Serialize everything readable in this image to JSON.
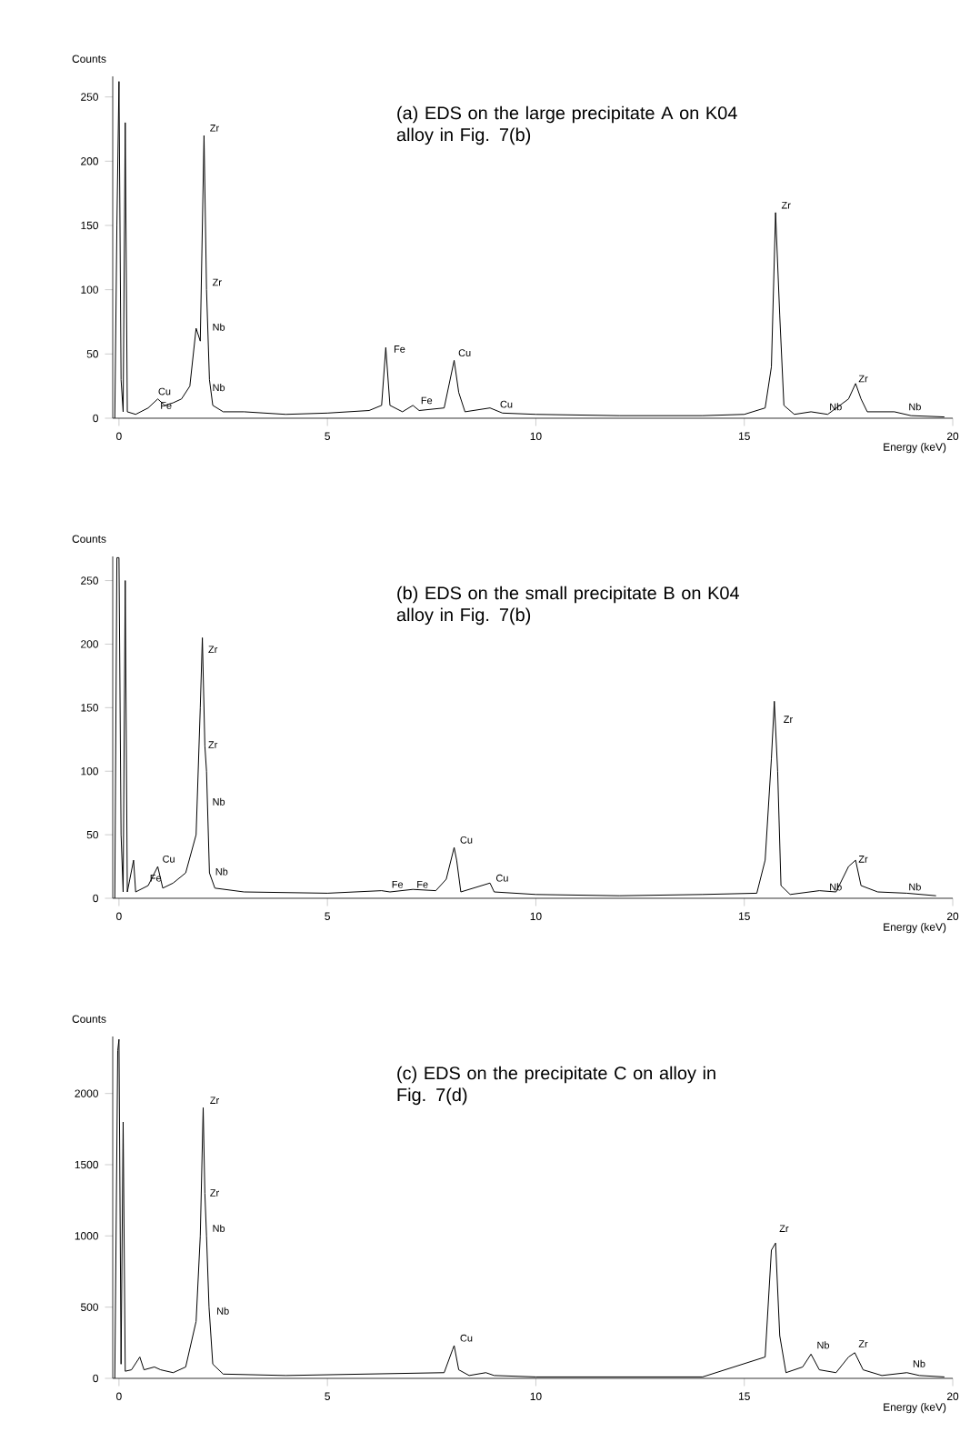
{
  "chart_data": [
    {
      "type": "line",
      "title": "(a) EDS on the large precipitate A on K04 alloy in Fig. 7(b)",
      "xlabel": "Energy (keV)",
      "ylabel": "Counts",
      "x": [
        -0.1,
        -0.05,
        0,
        0.05,
        0.1,
        0.15,
        0.2,
        0.4,
        0.7,
        0.93,
        1.1,
        1.3,
        1.5,
        1.7,
        1.85,
        1.95,
        2.04,
        2.1,
        2.17,
        2.25,
        2.5,
        3,
        4,
        5,
        6,
        6.3,
        6.4,
        6.5,
        6.8,
        7.05,
        7.2,
        7.8,
        8.04,
        8.15,
        8.3,
        8.9,
        9.2,
        10,
        12,
        14,
        15,
        15.5,
        15.65,
        15.75,
        15.85,
        15.95,
        16.2,
        16.6,
        17,
        17.5,
        17.67,
        17.8,
        17.95,
        18.6,
        19,
        19.8
      ],
      "series": [
        {
          "color": "#000000",
          "values": [
            0,
            150,
            262,
            30,
            5,
            230,
            5,
            3,
            8,
            15,
            10,
            12,
            15,
            25,
            70,
            60,
            220,
            100,
            30,
            10,
            5,
            5,
            3,
            4,
            6,
            10,
            55,
            10,
            5,
            10,
            6,
            8,
            45,
            20,
            5,
            8,
            4,
            3,
            2,
            2,
            3,
            8,
            40,
            160,
            80,
            10,
            3,
            5,
            3,
            15,
            27,
            15,
            5,
            5,
            2,
            1
          ]
        }
      ],
      "xlim": [
        -0.15,
        20
      ],
      "ylim": [
        0,
        266
      ],
      "xticks": [
        0,
        5,
        10,
        15,
        20
      ],
      "yticks": [
        0,
        50,
        100,
        150,
        200,
        250
      ],
      "annotations": [
        {
          "text": "Zr",
          "x": 2.04,
          "y": 220
        },
        {
          "text": "Zr",
          "x": 2.1,
          "y": 100
        },
        {
          "text": "Nb",
          "x": 2.1,
          "y": 65
        },
        {
          "text": "Nb",
          "x": 2.1,
          "y": 18
        },
        {
          "text": "Cu",
          "x": 0.8,
          "y": 15
        },
        {
          "text": "Fe",
          "x": 0.85,
          "y": 4
        },
        {
          "text": "Fe",
          "x": 6.45,
          "y": 48
        },
        {
          "text": "Fe",
          "x": 7.1,
          "y": 8
        },
        {
          "text": "Cu",
          "x": 8.0,
          "y": 45
        },
        {
          "text": "Cu",
          "x": 9.0,
          "y": 5
        },
        {
          "text": "Zr",
          "x": 15.75,
          "y": 160
        },
        {
          "text": "Zr",
          "x": 17.6,
          "y": 25
        },
        {
          "text": "Nb",
          "x": 16.9,
          "y": 3
        },
        {
          "text": "Nb",
          "x": 18.8,
          "y": 3
        }
      ]
    },
    {
      "type": "line",
      "title": "(b) EDS on the small precipitate B on K04 alloy in Fig. 7(b)",
      "xlabel": "Energy (keV)",
      "ylabel": "Counts",
      "x": [
        -0.1,
        -0.05,
        0,
        0.05,
        0.1,
        0.15,
        0.2,
        0.35,
        0.4,
        0.7,
        0.93,
        1.05,
        1.3,
        1.6,
        1.85,
        1.95,
        2.0,
        2.06,
        2.1,
        2.17,
        2.3,
        3,
        5,
        6.3,
        6.5,
        7.05,
        7.6,
        7.85,
        8.04,
        8.1,
        8.2,
        8.9,
        9.0,
        10,
        12,
        14,
        15.3,
        15.5,
        15.65,
        15.72,
        15.8,
        15.88,
        16.1,
        16.8,
        17.2,
        17.5,
        17.67,
        17.8,
        18.2,
        18.9,
        19.6
      ],
      "series": [
        {
          "color": "#000000",
          "values": [
            0,
            268,
            268,
            50,
            5,
            250,
            5,
            30,
            5,
            10,
            25,
            8,
            12,
            20,
            50,
            150,
            205,
            120,
            100,
            20,
            8,
            5,
            4,
            6,
            5,
            7,
            6,
            15,
            40,
            30,
            5,
            12,
            5,
            3,
            2,
            3,
            4,
            30,
            110,
            155,
            100,
            10,
            3,
            6,
            5,
            25,
            30,
            10,
            5,
            4,
            2
          ]
        }
      ],
      "xlim": [
        -0.15,
        20
      ],
      "ylim": [
        0,
        269
      ],
      "xticks": [
        0,
        5,
        10,
        15,
        20
      ],
      "yticks": [
        0,
        50,
        100,
        150,
        200,
        250
      ],
      "annotations": [
        {
          "text": "Zr",
          "x": 2.0,
          "y": 190
        },
        {
          "text": "Zr",
          "x": 2.0,
          "y": 115
        },
        {
          "text": "Nb",
          "x": 2.1,
          "y": 70
        },
        {
          "text": "Nb",
          "x": 2.17,
          "y": 15
        },
        {
          "text": "Cu",
          "x": 0.9,
          "y": 25
        },
        {
          "text": "Fe",
          "x": 0.6,
          "y": 10
        },
        {
          "text": "Fe",
          "x": 6.4,
          "y": 5
        },
        {
          "text": "Fe",
          "x": 7.0,
          "y": 5
        },
        {
          "text": "Cu",
          "x": 8.04,
          "y": 40
        },
        {
          "text": "Cu",
          "x": 8.9,
          "y": 10
        },
        {
          "text": "Zr",
          "x": 15.8,
          "y": 135
        },
        {
          "text": "Nb",
          "x": 16.9,
          "y": 3
        },
        {
          "text": "Zr",
          "x": 17.6,
          "y": 25
        },
        {
          "text": "Nb",
          "x": 18.8,
          "y": 3
        }
      ]
    },
    {
      "type": "line",
      "title": "(c) EDS on the precipitate C on alloy in Fig. 7(d)",
      "xlabel": "Energy (keV)",
      "ylabel": "Counts",
      "x": [
        -0.1,
        -0.03,
        0,
        0.05,
        0.1,
        0.15,
        0.3,
        0.5,
        0.6,
        0.85,
        1.0,
        1.3,
        1.6,
        1.85,
        1.95,
        2.02,
        2.06,
        2.1,
        2.16,
        2.25,
        2.5,
        4,
        7.8,
        8.0,
        8.04,
        8.15,
        8.4,
        8.8,
        9.0,
        10,
        14,
        15.5,
        15.65,
        15.75,
        15.85,
        16,
        16.4,
        16.6,
        16.8,
        17.2,
        17.5,
        17.65,
        17.85,
        18.3,
        18.9,
        19.2,
        19.8
      ],
      "series": [
        {
          "color": "#000000",
          "values": [
            0,
            2300,
            2380,
            100,
            1800,
            50,
            60,
            150,
            60,
            80,
            60,
            40,
            80,
            400,
            1000,
            1900,
            1300,
            1000,
            500,
            100,
            30,
            20,
            40,
            200,
            230,
            60,
            20,
            40,
            20,
            10,
            10,
            150,
            900,
            950,
            300,
            40,
            80,
            170,
            60,
            40,
            150,
            180,
            60,
            20,
            40,
            20,
            10
          ]
        }
      ],
      "xlim": [
        -0.15,
        20
      ],
      "ylim": [
        0,
        2400
      ],
      "xticks": [
        0,
        5,
        10,
        15,
        20
      ],
      "yticks": [
        0,
        500,
        1000,
        1500,
        2000
      ],
      "annotations": [
        {
          "text": "Zr",
          "x": 2.04,
          "y": 1900
        },
        {
          "text": "Zr",
          "x": 2.04,
          "y": 1250
        },
        {
          "text": "Nb",
          "x": 2.1,
          "y": 1000
        },
        {
          "text": "Nb",
          "x": 2.2,
          "y": 420
        },
        {
          "text": "Cu",
          "x": 8.04,
          "y": 230
        },
        {
          "text": "Zr",
          "x": 15.7,
          "y": 1000
        },
        {
          "text": "Nb",
          "x": 16.6,
          "y": 180
        },
        {
          "text": "Zr",
          "x": 17.6,
          "y": 190
        },
        {
          "text": "Nb",
          "x": 18.9,
          "y": 50
        }
      ]
    }
  ]
}
